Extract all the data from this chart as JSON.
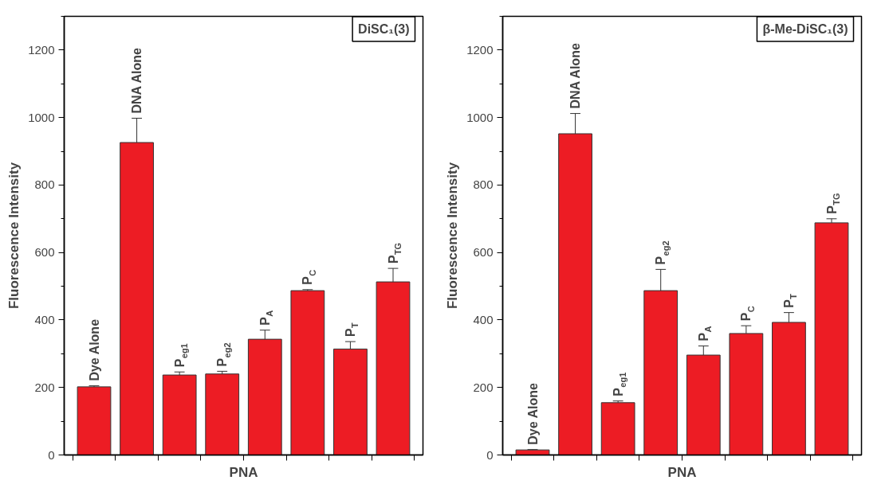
{
  "chart_data": [
    {
      "type": "bar",
      "annotations": [
        "DiSC₁(3)"
      ],
      "xlabel": "PNA",
      "ylabel": "Fluorescence Intensity",
      "categories": [
        "Dye Alone",
        "DNA Alone",
        "P$_{eg1}$",
        "P$_{eg2}$",
        "P$_{A}$",
        "P$_{C}$",
        "P$_{T}$",
        "P$_{TG}$"
      ],
      "values": [
        202,
        926,
        237,
        240,
        343,
        487,
        314,
        513
      ],
      "errors": [
        [
          202,
          205
        ],
        [
          926,
          998
        ],
        [
          237,
          246
        ],
        [
          240,
          248
        ],
        [
          343,
          370
        ],
        [
          487,
          490
        ],
        [
          314,
          336
        ],
        [
          513,
          553
        ]
      ],
      "color": "#ed1c24",
      "ylim": [
        0,
        1300
      ],
      "yticks": [
        0,
        200,
        400,
        600,
        800,
        1000,
        1200
      ],
      "grid": false
    },
    {
      "type": "bar",
      "annotations": [
        "β-Me-DiSC₁(3)"
      ],
      "xlabel": "PNA",
      "ylabel": "Fluorescence Intensity",
      "categories": [
        "Dye Alone",
        "DNA Alone",
        "P$_{eg1}$",
        "P$_{eg2}$",
        "P$_{A}$",
        "P$_{C}$",
        "P$_{T}$",
        "P$_{TG}$"
      ],
      "values": [
        15,
        952,
        155,
        487,
        296,
        360,
        393,
        688
      ],
      "errors": [
        [
          15,
          16
        ],
        [
          952,
          1012
        ],
        [
          155,
          160
        ],
        [
          487,
          550
        ],
        [
          296,
          323
        ],
        [
          360,
          383
        ],
        [
          393,
          422
        ],
        [
          688,
          700
        ]
      ],
      "color": "#ed1c24",
      "ylim": [
        0,
        1300
      ],
      "yticks": [
        0,
        200,
        400,
        600,
        800,
        1000,
        1200
      ],
      "grid": false
    }
  ]
}
